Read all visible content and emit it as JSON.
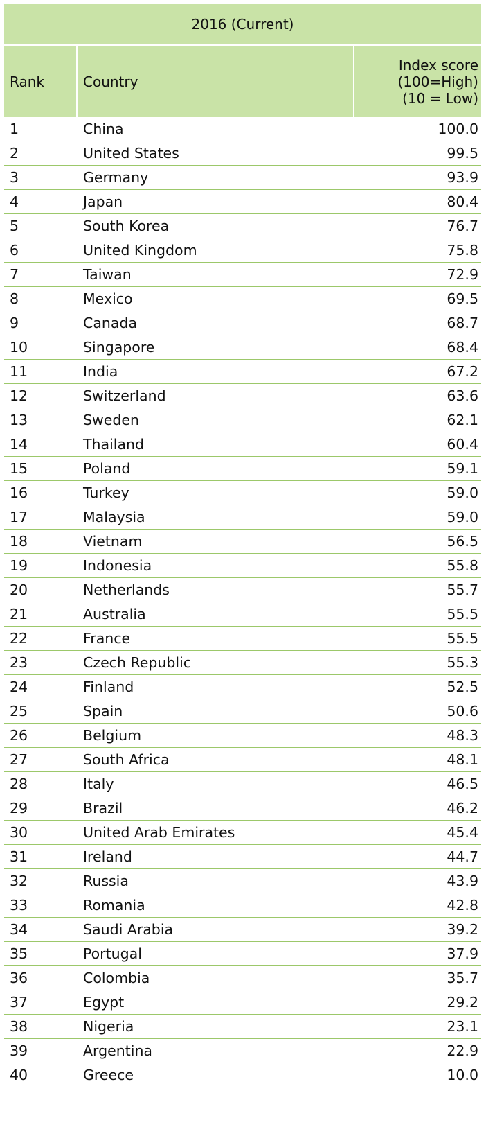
{
  "table": {
    "title": "2016 (Current)",
    "headers": {
      "rank": "Rank",
      "country": "Country",
      "score": "Index score\n(100=High)\n(10 = Low)"
    },
    "rows": [
      {
        "rank": "1",
        "country": "China",
        "score": "100.0"
      },
      {
        "rank": "2",
        "country": "United States",
        "score": "99.5"
      },
      {
        "rank": "3",
        "country": "Germany",
        "score": "93.9"
      },
      {
        "rank": "4",
        "country": "Japan",
        "score": "80.4"
      },
      {
        "rank": "5",
        "country": "South Korea",
        "score": "76.7"
      },
      {
        "rank": "6",
        "country": "United Kingdom",
        "score": "75.8"
      },
      {
        "rank": "7",
        "country": "Taiwan",
        "score": "72.9"
      },
      {
        "rank": "8",
        "country": "Mexico",
        "score": "69.5"
      },
      {
        "rank": "9",
        "country": "Canada",
        "score": "68.7"
      },
      {
        "rank": "10",
        "country": "Singapore",
        "score": "68.4"
      },
      {
        "rank": "11",
        "country": "India",
        "score": "67.2"
      },
      {
        "rank": "12",
        "country": "Switzerland",
        "score": "63.6"
      },
      {
        "rank": "13",
        "country": "Sweden",
        "score": "62.1"
      },
      {
        "rank": "14",
        "country": "Thailand",
        "score": "60.4"
      },
      {
        "rank": "15",
        "country": "Poland",
        "score": "59.1"
      },
      {
        "rank": "16",
        "country": "Turkey",
        "score": "59.0"
      },
      {
        "rank": "17",
        "country": "Malaysia",
        "score": "59.0"
      },
      {
        "rank": "18",
        "country": "Vietnam",
        "score": "56.5"
      },
      {
        "rank": "19",
        "country": "Indonesia",
        "score": "55.8"
      },
      {
        "rank": "20",
        "country": "Netherlands",
        "score": "55.7"
      },
      {
        "rank": "21",
        "country": "Australia",
        "score": "55.5"
      },
      {
        "rank": "22",
        "country": "France",
        "score": "55.5"
      },
      {
        "rank": "23",
        "country": "Czech Republic",
        "score": "55.3"
      },
      {
        "rank": "24",
        "country": "Finland",
        "score": "52.5"
      },
      {
        "rank": "25",
        "country": "Spain",
        "score": "50.6"
      },
      {
        "rank": "26",
        "country": "Belgium",
        "score": "48.3"
      },
      {
        "rank": "27",
        "country": "South Africa",
        "score": "48.1"
      },
      {
        "rank": "28",
        "country": "Italy",
        "score": "46.5"
      },
      {
        "rank": "29",
        "country": "Brazil",
        "score": "46.2"
      },
      {
        "rank": "30",
        "country": "United Arab Emirates",
        "score": "45.4"
      },
      {
        "rank": "31",
        "country": "Ireland",
        "score": "44.7"
      },
      {
        "rank": "32",
        "country": "Russia",
        "score": "43.9"
      },
      {
        "rank": "33",
        "country": "Romania",
        "score": "42.8"
      },
      {
        "rank": "34",
        "country": "Saudi Arabia",
        "score": "39.2"
      },
      {
        "rank": "35",
        "country": "Portugal",
        "score": "37.9"
      },
      {
        "rank": "36",
        "country": "Colombia",
        "score": "35.7"
      },
      {
        "rank": "37",
        "country": "Egypt",
        "score": "29.2"
      },
      {
        "rank": "38",
        "country": "Nigeria",
        "score": "23.1"
      },
      {
        "rank": "39",
        "country": "Argentina",
        "score": "22.9"
      },
      {
        "rank": "40",
        "country": "Greece",
        "score": "10.0"
      }
    ]
  },
  "colors": {
    "header_bg": "#c9e3a7",
    "row_divider": "#9cc86a"
  }
}
